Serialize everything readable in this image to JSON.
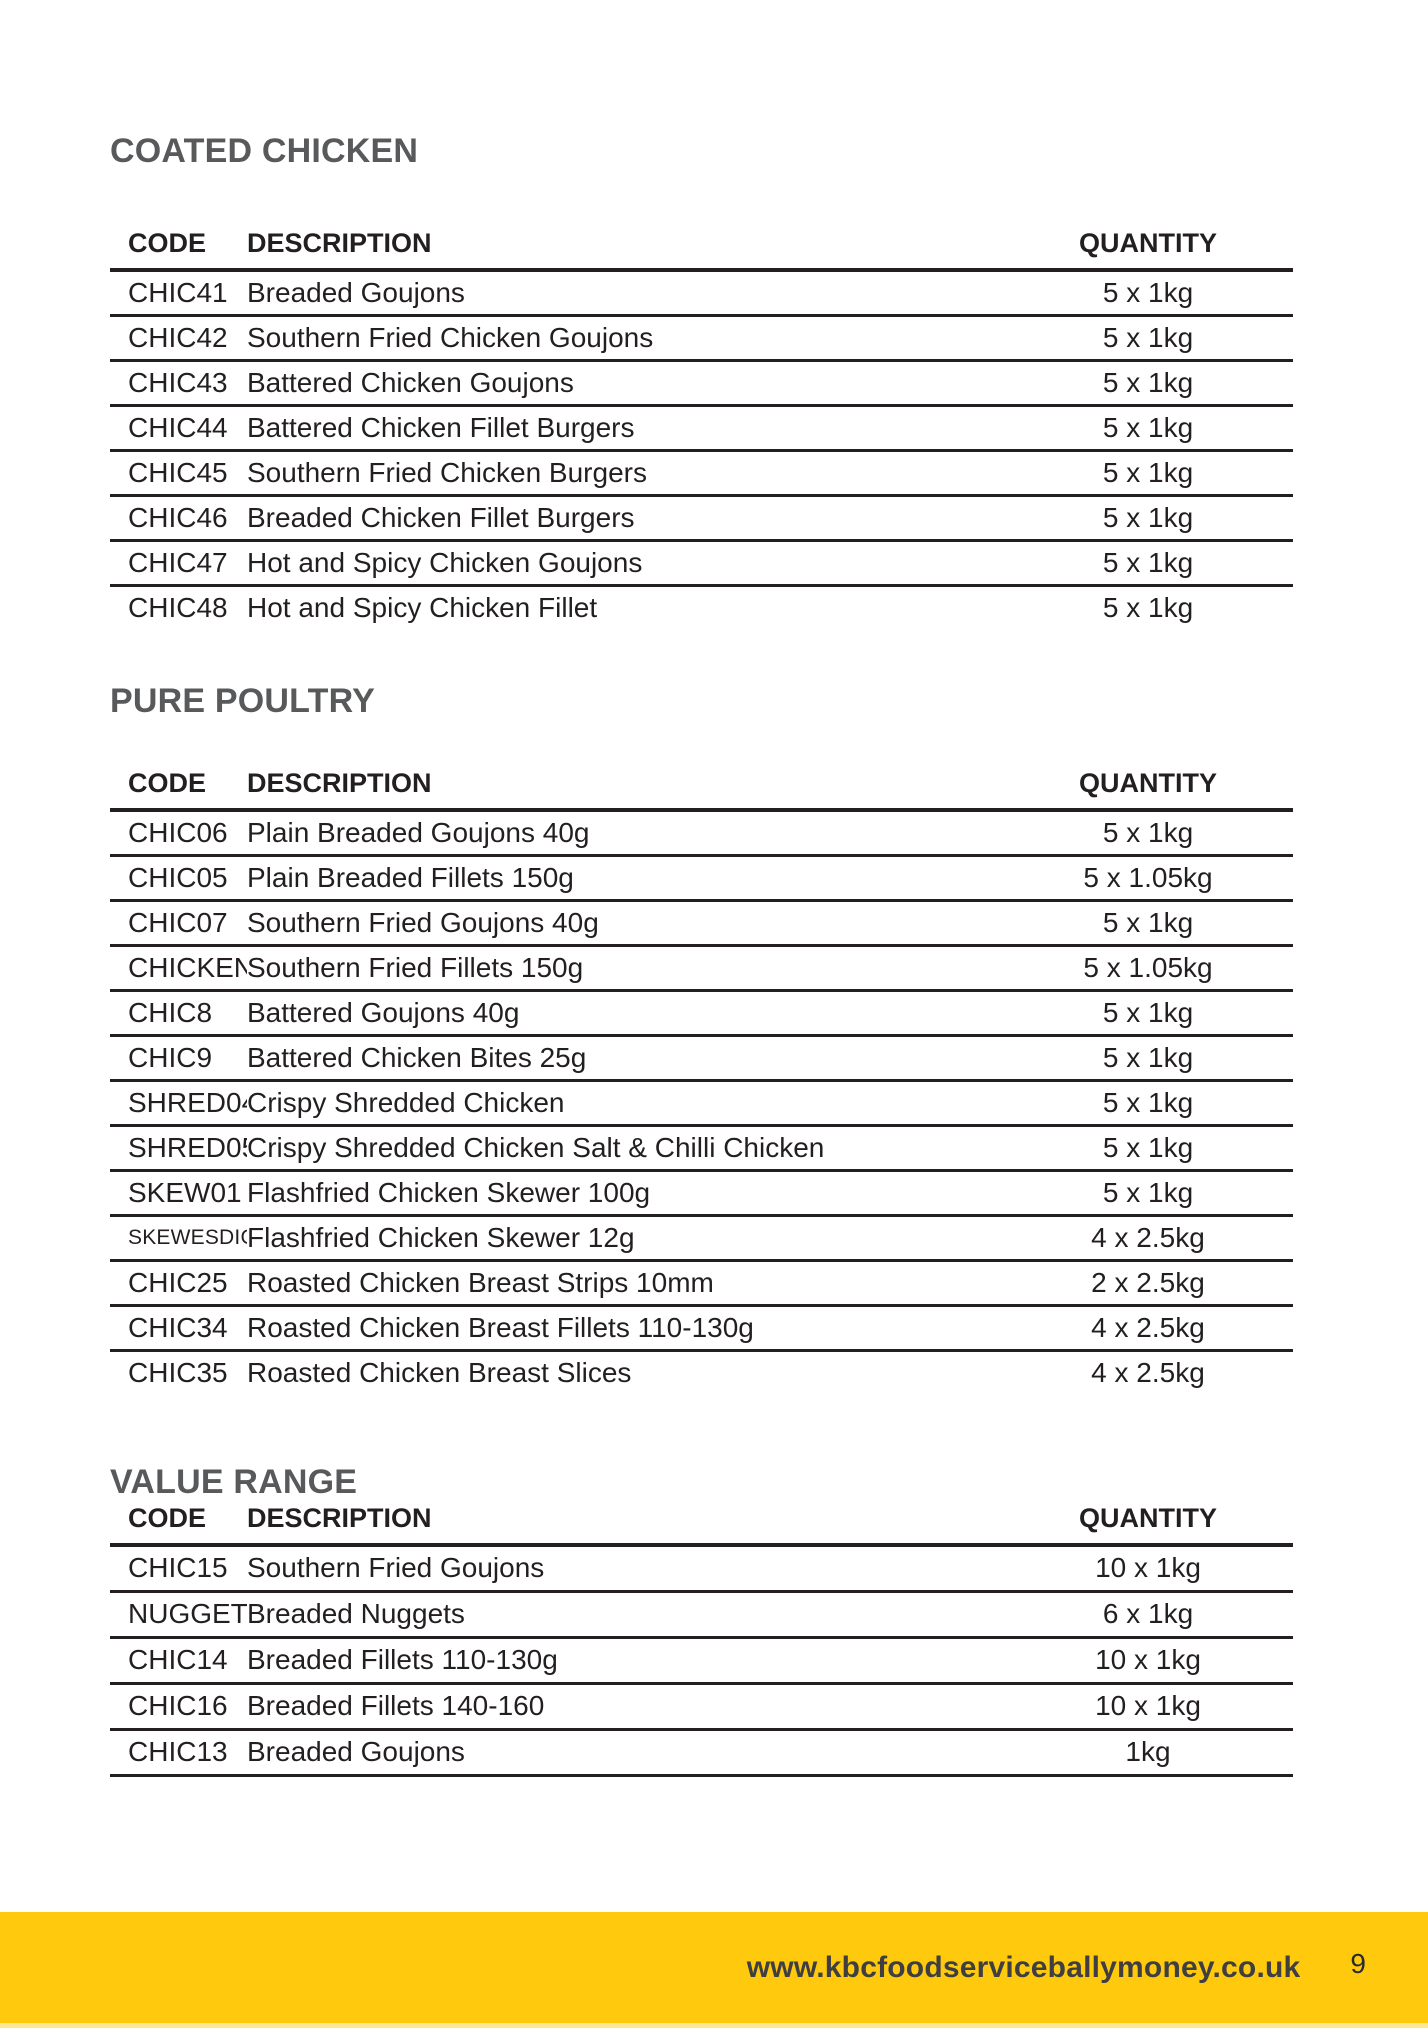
{
  "colors": {
    "accent_yellow": "#FFC90D",
    "accent_yellow_light": "#FFE793",
    "heading_gray": "#58595B",
    "text_dark": "#231F20"
  },
  "sections": [
    {
      "title": "COATED CHICKEN",
      "columns": [
        "CODE",
        "DESCRIPTION",
        "QUANTITY"
      ],
      "rows": [
        {
          "code": "CHIC41",
          "description": "Breaded Goujons",
          "quantity": "5 x 1kg"
        },
        {
          "code": "CHIC42",
          "description": "Southern Fried Chicken Goujons",
          "quantity": "5 x 1kg"
        },
        {
          "code": "CHIC43",
          "description": "Battered Chicken Goujons",
          "quantity": "5 x 1kg"
        },
        {
          "code": "CHIC44",
          "description": "Battered Chicken Fillet Burgers",
          "quantity": "5 x 1kg"
        },
        {
          "code": "CHIC45",
          "description": "Southern Fried Chicken Burgers",
          "quantity": "5 x 1kg"
        },
        {
          "code": "CHIC46",
          "description": "Breaded Chicken Fillet Burgers",
          "quantity": "5 x 1kg"
        },
        {
          "code": "CHIC47",
          "description": "Hot and Spicy Chicken Goujons",
          "quantity": "5 x 1kg"
        },
        {
          "code": "CHIC48",
          "description": "Hot and Spicy Chicken Fillet",
          "quantity": "5 x 1kg"
        }
      ]
    },
    {
      "title": "PURE POULTRY",
      "columns": [
        "CODE",
        "DESCRIPTION",
        "QUANTITY"
      ],
      "rows": [
        {
          "code": "CHIC06",
          "description": "Plain Breaded Goujons 40g",
          "quantity": "5 x 1kg"
        },
        {
          "code": "CHIC05",
          "description": "Plain Breaded Fillets 150g",
          "quantity": "5 x 1.05kg"
        },
        {
          "code": "CHIC07",
          "description": "Southern Fried Goujons 40g",
          "quantity": "5 x 1kg"
        },
        {
          "code": "CHICKEN",
          "description": "Southern Fried Fillets 150g",
          "quantity": "5 x 1.05kg"
        },
        {
          "code": "CHIC8",
          "description": "Battered Goujons 40g",
          "quantity": "5 x 1kg"
        },
        {
          "code": "CHIC9",
          "description": "Battered Chicken Bites 25g",
          "quantity": "5 x 1kg"
        },
        {
          "code": "SHRED04",
          "description": "Crispy Shredded Chicken",
          "quantity": "5 x 1kg"
        },
        {
          "code": "SHRED05",
          "description": "Crispy Shredded Chicken Salt & Chilli Chicken",
          "quantity": "5 x 1kg"
        },
        {
          "code": "SKEW01",
          "description": "Flashfried Chicken Skewer 100g",
          "quantity": "5 x 1kg"
        },
        {
          "code": "SKEWESDIGG",
          "description": "Flashfried Chicken Skewer 12g",
          "quantity": "4 x 2.5kg",
          "small_code": true
        },
        {
          "code": "CHIC25",
          "description": "Roasted Chicken Breast Strips 10mm",
          "quantity": "2 x 2.5kg"
        },
        {
          "code": "CHIC34",
          "description": "Roasted Chicken Breast Fillets 110-130g",
          "quantity": "4 x 2.5kg"
        },
        {
          "code": "CHIC35",
          "description": "Roasted Chicken Breast Slices",
          "quantity": "4 x 2.5kg"
        }
      ]
    },
    {
      "title": "VALUE RANGE",
      "columns": [
        "CODE",
        "DESCRIPTION",
        "QUANTITY"
      ],
      "rows": [
        {
          "code": "CHIC15",
          "description": "Southern Fried Goujons",
          "quantity": "10 x 1kg"
        },
        {
          "code": "NUGGETS",
          "description": "Breaded Nuggets",
          "quantity": "6 x 1kg"
        },
        {
          "code": "CHIC14",
          "description": "Breaded Fillets 110-130g",
          "quantity": "10 x 1kg"
        },
        {
          "code": "CHIC16",
          "description": "Breaded Fillets 140-160",
          "quantity": "10 x 1kg"
        },
        {
          "code": "CHIC13",
          "description": "Breaded Goujons",
          "quantity": "1kg"
        }
      ]
    }
  ],
  "footer": {
    "url": "www.kbcfoodserviceballymoney.co.uk",
    "page_number": "9"
  }
}
